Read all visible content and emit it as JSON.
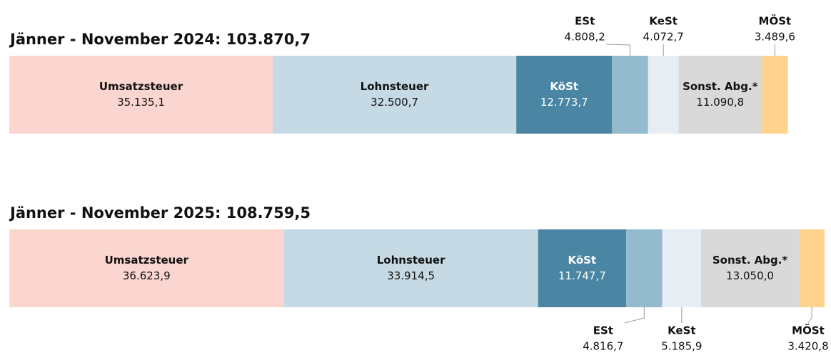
{
  "chart_data": [
    {
      "type": "stacked-bar",
      "title": "Jänner - November 2024: 103.870,7",
      "series": [
        {
          "name": "Umsatzsteuer",
          "color": "#fbd5cf",
          "values": [
            35135.1
          ],
          "value_labels": [
            "35.135,1"
          ]
        },
        {
          "name": "Lohnsteuer",
          "color": "#c5dae4",
          "values": [
            32500.7
          ],
          "value_labels": [
            "32.500,7"
          ]
        },
        {
          "name": "KöSt",
          "color": "#4a86a3",
          "values": [
            12773.7
          ],
          "value_labels": [
            "12.773,7"
          ]
        },
        {
          "name": "ESt",
          "color": "#94bacd",
          "values": [
            4808.2
          ],
          "value_labels": [
            "4.808,2"
          ]
        },
        {
          "name": "KeSt",
          "color": "#e6eef4",
          "values": [
            4072.7
          ],
          "value_labels": [
            "4.072,7"
          ]
        },
        {
          "name": "Sonst. Abg.*",
          "color": "#d9d9d9",
          "values": [
            11090.8
          ],
          "value_labels": [
            "11.090,8"
          ]
        },
        {
          "name": "MÖSt",
          "color": "#fed38e",
          "values": [
            3489.6
          ],
          "value_labels": [
            "3.489,6"
          ]
        }
      ]
    },
    {
      "type": "stacked-bar",
      "title": "Jänner - November 2025: 108.759,5",
      "series": [
        {
          "name": "Umsatzsteuer",
          "color": "#fbd5cf",
          "values": [
            36623.9
          ],
          "value_labels": [
            "36.623,9"
          ]
        },
        {
          "name": "Lohnsteuer",
          "color": "#c5dae4",
          "values": [
            33914.5
          ],
          "value_labels": [
            "33.914,5"
          ]
        },
        {
          "name": "KöSt",
          "color": "#4a86a3",
          "values": [
            11747.7
          ],
          "value_labels": [
            "11.747,7"
          ]
        },
        {
          "name": "ESt",
          "color": "#94bacd",
          "values": [
            4816.7
          ],
          "value_labels": [
            "4.816,7"
          ]
        },
        {
          "name": "KeSt",
          "color": "#e6eef4",
          "values": [
            5185.9
          ],
          "value_labels": [
            "5.185,9"
          ]
        },
        {
          "name": "Sonst. Abg.*",
          "color": "#d9d9d9",
          "values": [
            13050.0
          ],
          "value_labels": [
            "13.050,0"
          ]
        },
        {
          "name": "MÖSt",
          "color": "#fed38e",
          "values": [
            3420.8
          ],
          "value_labels": [
            "3.420,8"
          ]
        }
      ]
    }
  ]
}
